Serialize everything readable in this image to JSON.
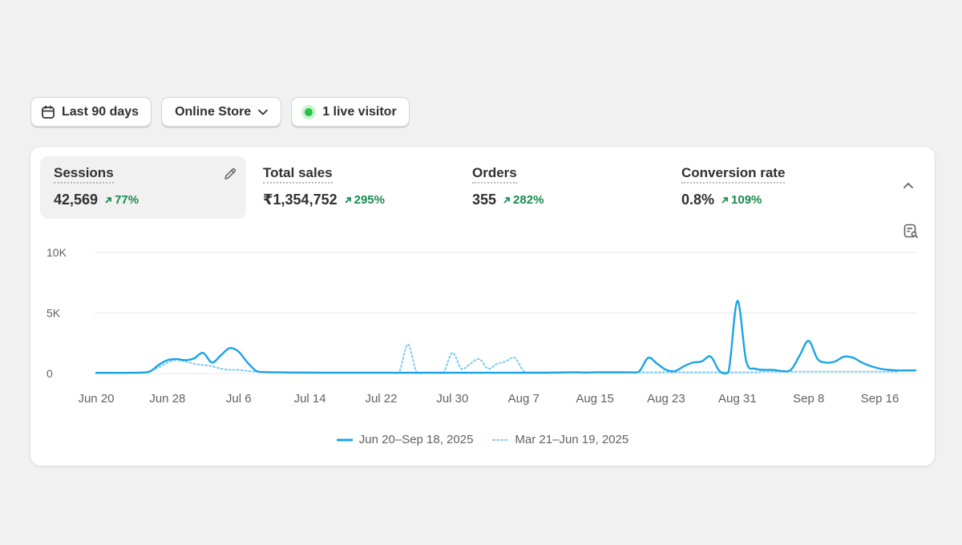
{
  "filters": {
    "date_range": "Last 90 days",
    "channel": "Online Store",
    "live_visitors": "1 live visitor"
  },
  "metrics": [
    {
      "label": "Sessions",
      "value": "42,569",
      "change": "77%",
      "selected": true
    },
    {
      "label": "Total sales",
      "value": "₹1,354,752",
      "change": "295%",
      "selected": false
    },
    {
      "label": "Orders",
      "value": "355",
      "change": "282%",
      "selected": false
    },
    {
      "label": "Conversion rate",
      "value": "0.8%",
      "change": "109%",
      "selected": false
    }
  ],
  "colors": {
    "primary_series": "#1ba3e6",
    "comparison_series": "#7ccbf0",
    "positive_change": "#1a8a4c",
    "live_dot": "#29c046"
  },
  "icons": [
    "calendar-icon",
    "chevron-down-icon",
    "live-dot-icon",
    "pencil-icon",
    "chevron-up-icon",
    "report-search-icon",
    "arrow-up-right-icon"
  ],
  "chart_data": {
    "type": "line",
    "title": "",
    "xlabel": "",
    "ylabel": "",
    "ylim": [
      0,
      10000
    ],
    "y_ticks": [
      {
        "value": 0,
        "label": "0"
      },
      {
        "value": 5000,
        "label": "5K"
      },
      {
        "value": 10000,
        "label": "10K"
      }
    ],
    "x_ticks": [
      "Jun 20",
      "Jun 28",
      "Jul 6",
      "Jul 14",
      "Jul 22",
      "Jul 30",
      "Aug 7",
      "Aug 15",
      "Aug 23",
      "Aug 31",
      "Sep 8",
      "Sep 16"
    ],
    "x_tick_day_index": [
      0,
      8,
      16,
      24,
      32,
      40,
      48,
      56,
      64,
      72,
      80,
      88
    ],
    "grid": true,
    "legend_position": "bottom",
    "series": [
      {
        "name": "Jun 20–Sep 18, 2025",
        "style": "solid",
        "values": [
          50,
          50,
          50,
          50,
          60,
          80,
          150,
          700,
          1100,
          1200,
          1100,
          1250,
          1700,
          900,
          1500,
          2100,
          1800,
          900,
          200,
          120,
          100,
          90,
          80,
          80,
          70,
          70,
          60,
          60,
          60,
          60,
          60,
          60,
          60,
          60,
          60,
          60,
          60,
          60,
          60,
          60,
          60,
          60,
          60,
          60,
          60,
          60,
          60,
          60,
          60,
          60,
          60,
          70,
          80,
          90,
          100,
          80,
          100,
          100,
          100,
          100,
          100,
          200,
          1300,
          800,
          300,
          200,
          600,
          900,
          1000,
          1400,
          200,
          100,
          6000,
          1000,
          400,
          300,
          300,
          200,
          300,
          1500,
          2700,
          1200,
          900,
          1000,
          1400,
          1300,
          900,
          600,
          400,
          300,
          250,
          250,
          250
        ]
      },
      {
        "name": "Mar 21–Jun 19, 2025",
        "style": "dotted",
        "values": [
          30,
          30,
          30,
          30,
          40,
          60,
          200,
          500,
          900,
          1100,
          1000,
          800,
          700,
          600,
          400,
          300,
          300,
          200,
          150,
          120,
          100,
          80,
          80,
          80,
          80,
          80,
          80,
          80,
          80,
          80,
          80,
          80,
          80,
          80,
          80,
          2400,
          80,
          80,
          80,
          80,
          1700,
          400,
          800,
          1200,
          400,
          800,
          1000,
          1300,
          200,
          100,
          100,
          100,
          100,
          100,
          100,
          100,
          100,
          100,
          100,
          100,
          100,
          100,
          100,
          100,
          100,
          100,
          100,
          100,
          100,
          100,
          100,
          100,
          100,
          100,
          100,
          150,
          150,
          150,
          150,
          150,
          150,
          150,
          150,
          150,
          150,
          150,
          150,
          150,
          150,
          150,
          150
        ]
      }
    ]
  }
}
